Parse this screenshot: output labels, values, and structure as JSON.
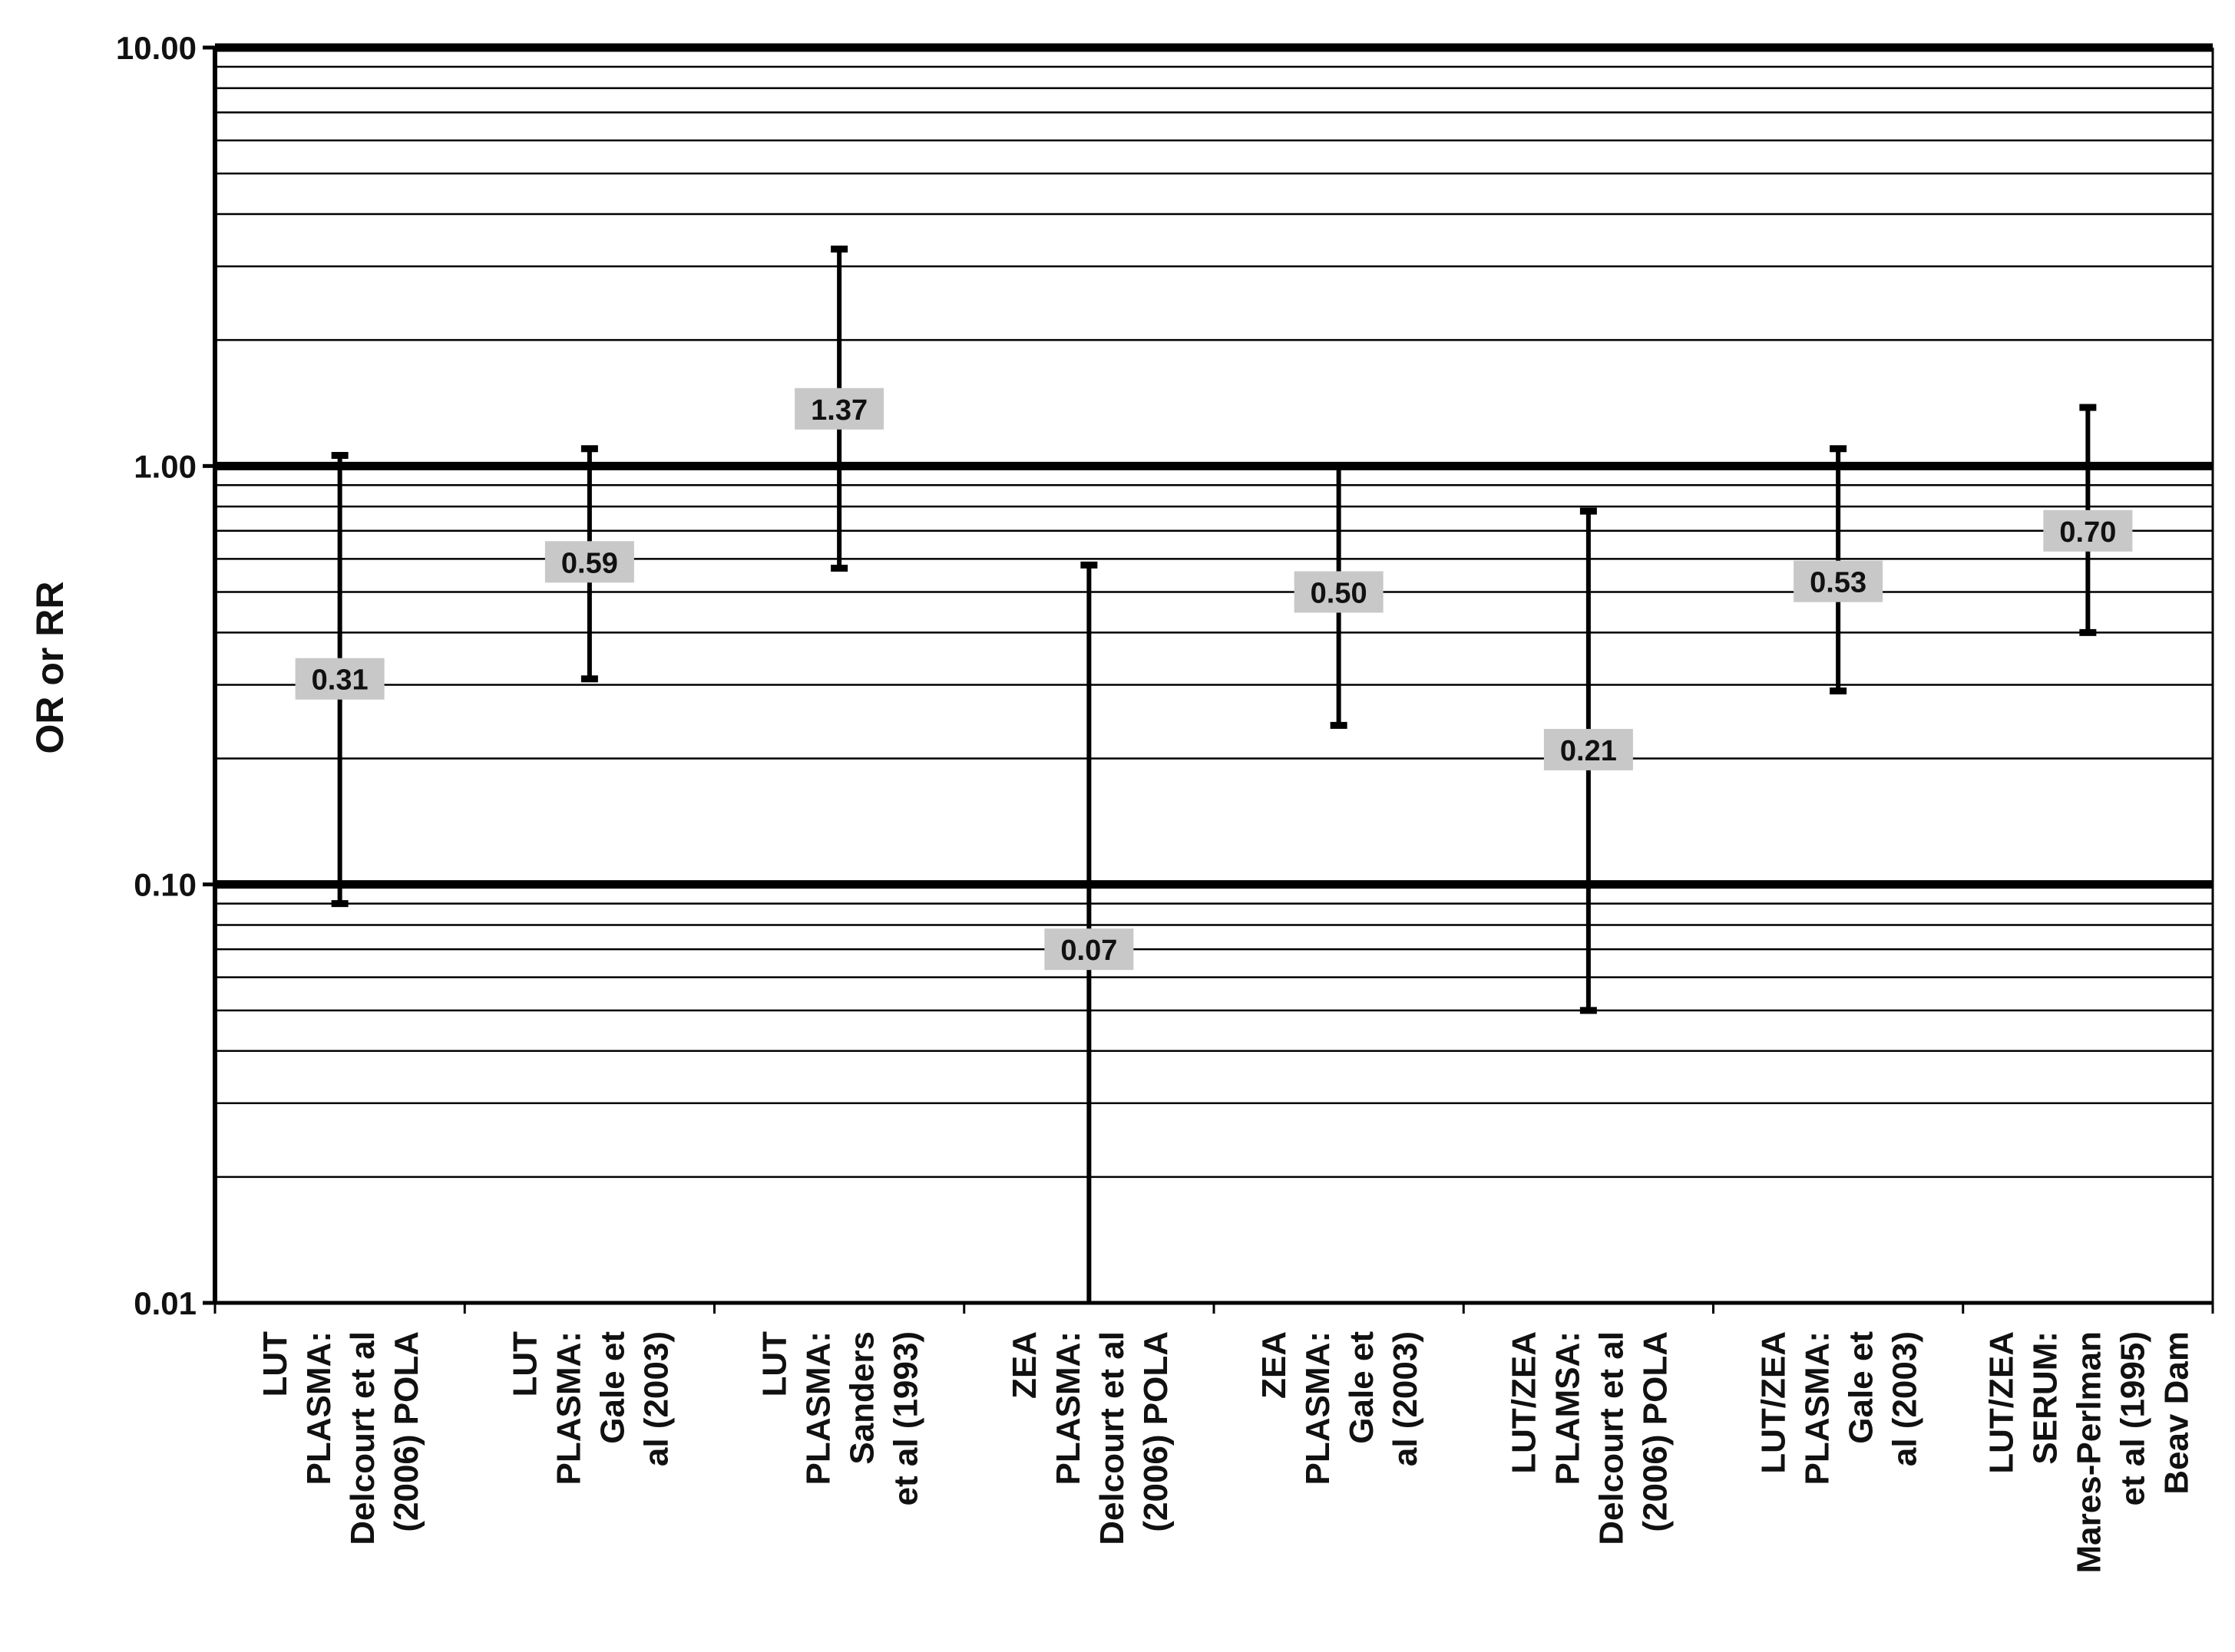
{
  "chart_data": {
    "type": "error-bar",
    "title": "",
    "xlabel": "",
    "ylabel": "OR or RR",
    "yscale": "log",
    "ylim": [
      0.01,
      10.0
    ],
    "ytick_labels": [
      "10.00",
      "1.00",
      "0.10",
      "0.01"
    ],
    "ytick_values": [
      10.0,
      1.0,
      0.1,
      0.01
    ],
    "grid": true,
    "legend": "none",
    "colors": {
      "bar": "#000000",
      "label_bg": "#c8c8c8",
      "grid": "#000000"
    },
    "categories": [
      [
        "LUT",
        "PLASMA:",
        "Delcourt et al",
        "(2006) POLA"
      ],
      [
        "LUT",
        "PLASMA:",
        "Gale et",
        "al (2003)"
      ],
      [
        "LUT",
        "PLASMA:",
        "Sanders",
        "et al (1993)"
      ],
      [
        "ZEA",
        "PLASMA:",
        "Delcourt et al",
        "(2006) POLA"
      ],
      [
        "ZEA",
        "PLASMA:",
        "Gale et",
        "al (2003)"
      ],
      [
        "LUT/ZEA",
        "PLAMSA:",
        "Delcourt et al",
        "(2006) POLA"
      ],
      [
        "LUT/ZEA",
        "PLASMA:",
        "Gale et",
        "al (2003)"
      ],
      [
        "LUT/ZEA",
        "SERUM:",
        "Mares-Perlman",
        "et al (1995)",
        "Beav Dam"
      ]
    ],
    "points": [
      {
        "value": 0.31,
        "label": "0.31",
        "lower": 0.09,
        "upper": 1.06
      },
      {
        "value": 0.59,
        "label": "0.59",
        "lower": 0.31,
        "upper": 1.1
      },
      {
        "value": 1.37,
        "label": "1.37",
        "lower": 0.57,
        "upper": 3.3
      },
      {
        "value": 0.07,
        "label": "0.07",
        "lower": 0.01,
        "upper": 0.58
      },
      {
        "value": 0.5,
        "label": "0.50",
        "lower": 0.24,
        "upper": 1.0
      },
      {
        "value": 0.21,
        "label": "0.21",
        "lower": 0.05,
        "upper": 0.78
      },
      {
        "value": 0.53,
        "label": "0.53",
        "lower": 0.29,
        "upper": 1.1
      },
      {
        "value": 0.7,
        "label": "0.70",
        "lower": 0.4,
        "upper": 1.38
      }
    ]
  }
}
